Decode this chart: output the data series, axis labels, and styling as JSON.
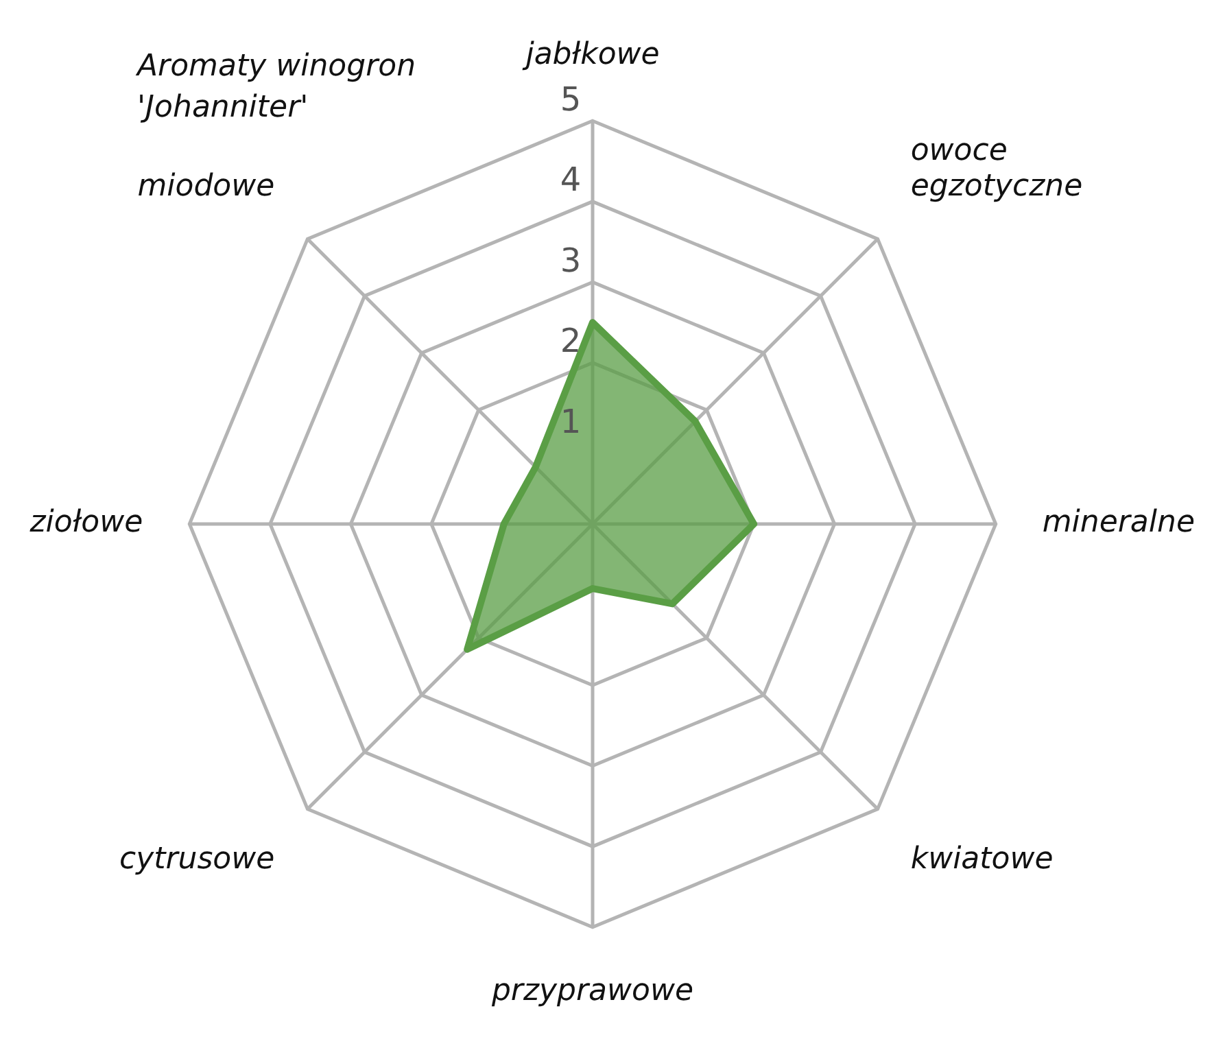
{
  "chart_data": {
    "type": "radar",
    "title": "Aromaty winogron 'Johanniter'",
    "categories": [
      "jabłkowe",
      "owoce egzotyczne",
      "mineralne",
      "kwiatowe",
      "przyprawowe",
      "cytrusowe",
      "ziołowe",
      "miodowe"
    ],
    "series": [
      {
        "color": "#5a9e45",
        "values": [
          2.5,
          1.8,
          2,
          1.4,
          0.8,
          2.2,
          1.1,
          1.0
        ]
      }
    ],
    "ylim": [
      0,
      5
    ],
    "yticks": [
      1,
      2,
      3,
      4,
      5
    ],
    "grid": true,
    "legend": false,
    "marker": "none"
  }
}
